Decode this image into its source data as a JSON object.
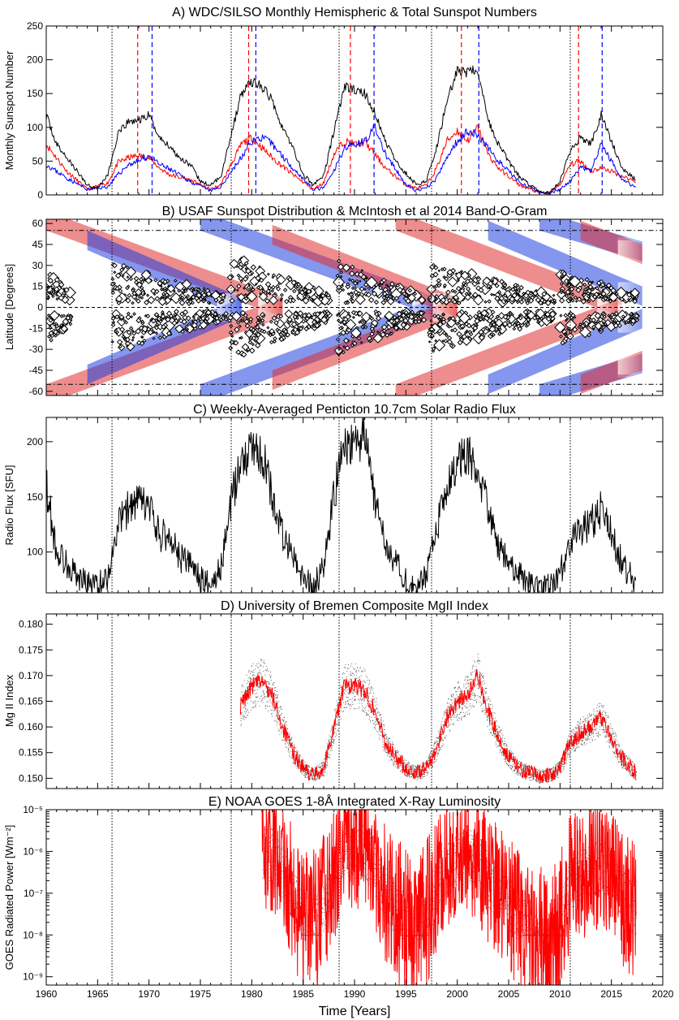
{
  "figure": {
    "xlabel": "Time [Years]",
    "x_ticks": [
      1960,
      1965,
      1970,
      1975,
      1980,
      1985,
      1990,
      1995,
      2000,
      2005,
      2010,
      2015,
      2020
    ],
    "xlim": [
      1960,
      2020
    ],
    "cycle_minima": [
      1966.4,
      1978.0,
      1988.5,
      1997.5,
      2011.0
    ]
  },
  "chart_data": [
    {
      "id": "A",
      "type": "line",
      "title": "A) WDC/SILSO Monthly Hemispheric & Total Sunspot Numbers",
      "ylabel": "Monthly Sunspot Number",
      "ylim": [
        0,
        250
      ],
      "y_ticks": [
        0,
        50,
        100,
        150,
        200,
        250
      ],
      "colors": {
        "total": "#000000",
        "north": "#ff0000",
        "south": "#0000ff"
      },
      "series": [
        {
          "name": "Total",
          "color": "#000000",
          "x": [
            1960,
            1961,
            1962,
            1963,
            1964,
            1965,
            1966,
            1967,
            1968,
            1969,
            1970,
            1971,
            1972,
            1973,
            1974,
            1975,
            1976,
            1977,
            1978,
            1979,
            1980,
            1981,
            1982,
            1983,
            1984,
            1985,
            1986,
            1987,
            1988,
            1989,
            1990,
            1991,
            1992,
            1993,
            1994,
            1995,
            1996,
            1997,
            1998,
            1999,
            2000,
            2001,
            2002,
            2003,
            2004,
            2005,
            2006,
            2007,
            2008,
            2009,
            2010,
            2011,
            2012,
            2013,
            2014,
            2015,
            2016,
            2017.4
          ],
          "y": [
            118,
            75,
            55,
            35,
            15,
            10,
            30,
            90,
            108,
            110,
            118,
            85,
            72,
            55,
            45,
            20,
            14,
            28,
            90,
            150,
            168,
            160,
            140,
            100,
            70,
            30,
            15,
            28,
            95,
            160,
            155,
            150,
            120,
            80,
            50,
            32,
            15,
            22,
            70,
            140,
            185,
            180,
            185,
            110,
            75,
            50,
            28,
            15,
            5,
            3,
            20,
            65,
            85,
            75,
            118,
            80,
            40,
            22
          ]
        },
        {
          "name": "North",
          "color": "#ff0000",
          "x": [
            1960,
            1962,
            1964,
            1966,
            1967,
            1968,
            1969,
            1970,
            1971,
            1972,
            1974,
            1976,
            1977,
            1978,
            1979,
            1980,
            1981,
            1982,
            1984,
            1986,
            1987,
            1988,
            1989,
            1990,
            1991,
            1992,
            1993,
            1995,
            1996,
            1997,
            1998,
            1999,
            2000,
            2001,
            2002,
            2003,
            2004,
            2006,
            2008,
            2009,
            2010,
            2011,
            2012,
            2013,
            2014,
            2015,
            2016,
            2017.4
          ],
          "y": [
            75,
            35,
            8,
            18,
            48,
            55,
            58,
            55,
            40,
            30,
            22,
            8,
            15,
            45,
            75,
            85,
            70,
            55,
            30,
            8,
            18,
            60,
            80,
            75,
            78,
            60,
            40,
            15,
            10,
            14,
            40,
            80,
            95,
            80,
            100,
            60,
            40,
            15,
            3,
            3,
            15,
            45,
            50,
            35,
            40,
            35,
            28,
            20
          ]
        },
        {
          "name": "South",
          "color": "#0000ff",
          "x": [
            1960,
            1962,
            1964,
            1966,
            1967,
            1968,
            1969,
            1970,
            1971,
            1972,
            1974,
            1976,
            1977,
            1978,
            1979,
            1980,
            1981,
            1982,
            1984,
            1986,
            1987,
            1988,
            1989,
            1990,
            1991,
            1992,
            1993,
            1995,
            1996,
            1997,
            1998,
            1999,
            2000,
            2001,
            2002,
            2003,
            2004,
            2006,
            2008,
            2009,
            2010,
            2011,
            2012,
            2013,
            2014,
            2015,
            2016,
            2017.4
          ],
          "y": [
            45,
            25,
            8,
            12,
            30,
            45,
            50,
            58,
            45,
            38,
            20,
            6,
            12,
            35,
            55,
            80,
            85,
            75,
            40,
            8,
            10,
            35,
            70,
            75,
            80,
            100,
            60,
            15,
            6,
            10,
            25,
            55,
            80,
            95,
            88,
            70,
            50,
            20,
            3,
            3,
            8,
            20,
            40,
            35,
            75,
            50,
            25,
            10
          ]
        }
      ],
      "markers": {
        "north_max": [
          1968.9,
          1979.7,
          1989.6,
          2000.4,
          2011.8
        ],
        "south_max": [
          1970.3,
          1980.4,
          1991.9,
          2002.1,
          2014.1
        ]
      }
    },
    {
      "id": "B",
      "type": "scatter",
      "title": "B) USAF Sunspot Distribution & McIntosh et al 2014 Band-O-Gram",
      "ylabel": "Latitude [Degrees]",
      "ylim": [
        -63,
        63
      ],
      "y_ticks": [
        60,
        45,
        30,
        15,
        0,
        -15,
        -30,
        -45,
        -60
      ],
      "reference_lines": [
        55,
        0,
        -55
      ],
      "spot_bands": [
        {
          "x": [
            1960,
            1962.5
          ],
          "lat": [
            5,
            28
          ]
        },
        {
          "x": [
            1966.4,
            1977.5
          ],
          "lat": [
            3,
            32
          ]
        },
        {
          "x": [
            1977.8,
            1987.5
          ],
          "lat": [
            4,
            38
          ]
        },
        {
          "x": [
            1988.3,
            1996.8
          ],
          "lat": [
            3,
            35
          ]
        },
        {
          "x": [
            1997.3,
            2009.5
          ],
          "lat": [
            3,
            32
          ]
        },
        {
          "x": [
            2010,
            2017.5
          ],
          "lat": [
            4,
            26
          ]
        }
      ],
      "bands": [
        {
          "color": "#e03030",
          "x0": 1960,
          "lat0": 62,
          "x1": 1983,
          "lat1": 0
        },
        {
          "color": "#2040e0",
          "x0": 1964,
          "lat0": 48,
          "x1": 1979,
          "lat1": 0
        },
        {
          "color": "#2040e0",
          "x0": 1975,
          "lat0": 62,
          "x1": 1998,
          "lat1": 0
        },
        {
          "color": "#e03030",
          "x0": 1982,
          "lat0": 52,
          "x1": 2000,
          "lat1": 0
        },
        {
          "color": "#e03030",
          "x0": 1994,
          "lat0": 62,
          "x1": 2016,
          "lat1": 0
        },
        {
          "color": "#2040e0",
          "x0": 2003,
          "lat0": 55,
          "x1": 2018,
          "lat1": 8
        },
        {
          "color": "#2040e0",
          "x0": 2008,
          "lat0": 62,
          "x1": 2018,
          "lat1": 40
        },
        {
          "color": "#e03030",
          "x0": 2012,
          "lat0": 55,
          "x1": 2018,
          "lat1": 38
        }
      ]
    },
    {
      "id": "C",
      "type": "line",
      "title": "C) Weekly-Averaged Penticton 10.7cm Solar Radio Flux",
      "ylabel": "Radio Flux [SFU]",
      "ylim": [
        63,
        222
      ],
      "y_ticks": [
        100,
        150,
        200
      ],
      "series": [
        {
          "name": "F10.7",
          "color": "#000000",
          "x": [
            1960,
            1961,
            1962,
            1963,
            1964,
            1965,
            1966,
            1967,
            1968,
            1969,
            1970,
            1971,
            1972,
            1973,
            1974,
            1975,
            1976,
            1977,
            1978,
            1979,
            1980,
            1981,
            1982,
            1983,
            1984,
            1985,
            1986,
            1987,
            1988,
            1989,
            1990,
            1991,
            1992,
            1993,
            1994,
            1995,
            1996,
            1997,
            1998,
            1999,
            2000,
            2001,
            2002,
            2003,
            2004,
            2005,
            2006,
            2007,
            2008,
            2009,
            2010,
            2011,
            2012,
            2013,
            2014,
            2015,
            2016,
            2017.4
          ],
          "y": [
            160,
            100,
            90,
            78,
            72,
            70,
            78,
            125,
            140,
            145,
            140,
            115,
            115,
            95,
            90,
            75,
            72,
            85,
            145,
            185,
            195,
            190,
            150,
            115,
            95,
            75,
            70,
            85,
            150,
            200,
            195,
            205,
            145,
            110,
            90,
            75,
            70,
            80,
            120,
            160,
            185,
            190,
            180,
            135,
            105,
            90,
            80,
            72,
            70,
            70,
            80,
            110,
            120,
            125,
            140,
            115,
            90,
            72
          ]
        }
      ]
    },
    {
      "id": "D",
      "type": "line",
      "title": "D) University of Bremen Composite MgII Index",
      "ylabel": "Mg II Index",
      "ylim": [
        0.148,
        0.182
      ],
      "y_ticks": [
        0.15,
        0.155,
        0.16,
        0.165,
        0.17,
        0.175,
        0.18
      ],
      "series": [
        {
          "name": "MgII",
          "color": "#ff0000",
          "x": [
            1978.9,
            1980,
            1981,
            1982,
            1983,
            1984,
            1985,
            1986,
            1987,
            1988,
            1989,
            1990,
            1991,
            1992,
            1993,
            1994,
            1995,
            1996,
            1997,
            1998,
            1999,
            2000,
            2001,
            2002,
            2003,
            2004,
            2005,
            2006,
            2007,
            2008,
            2009,
            2010,
            2011,
            2012,
            2013,
            2014,
            2015,
            2016,
            2017.4
          ],
          "y": [
            0.164,
            0.168,
            0.169,
            0.166,
            0.16,
            0.155,
            0.152,
            0.1505,
            0.152,
            0.16,
            0.168,
            0.168,
            0.167,
            0.163,
            0.157,
            0.154,
            0.152,
            0.151,
            0.152,
            0.156,
            0.162,
            0.165,
            0.166,
            0.17,
            0.163,
            0.158,
            0.154,
            0.152,
            0.151,
            0.1505,
            0.1505,
            0.152,
            0.157,
            0.159,
            0.16,
            0.162,
            0.158,
            0.154,
            0.151
          ]
        }
      ]
    },
    {
      "id": "E",
      "type": "line",
      "title": "E) NOAA GOES 1-8Å Integrated X-Ray Luminosity",
      "ylabel": "GOES Radiated Power [Wm⁻²]",
      "yscale": "log",
      "ylim_exp": [
        -9.2,
        -5
      ],
      "y_tick_labels": [
        "10⁻⁹",
        "10⁻⁸",
        "10⁻⁷",
        "10⁻⁶",
        "10⁻⁵"
      ],
      "y_tick_exps": [
        -9,
        -8,
        -7,
        -6,
        -5
      ],
      "series": [
        {
          "name": "X-ray",
          "color": "#ff0000",
          "x": [
            1981,
            1982,
            1983,
            1984,
            1985,
            1986,
            1987,
            1988,
            1989,
            1990,
            1991,
            1992,
            1993,
            1994,
            1995,
            1996,
            1997,
            1998,
            1999,
            2000,
            2001,
            2002,
            2003,
            2004,
            2005,
            2006,
            2007,
            2008,
            2009,
            2010,
            2011,
            2012,
            2013,
            2014,
            2015,
            2016,
            2017.4
          ],
          "y_exp": [
            -6.0,
            -6.1,
            -6.5,
            -7.0,
            -7.6,
            -7.8,
            -7.3,
            -6.6,
            -5.9,
            -6.0,
            -6.0,
            -6.4,
            -7.0,
            -7.4,
            -7.7,
            -8.2,
            -7.5,
            -6.8,
            -6.4,
            -6.2,
            -6.1,
            -6.2,
            -6.7,
            -7.0,
            -7.2,
            -7.6,
            -7.9,
            -8.3,
            -8.4,
            -7.8,
            -6.7,
            -6.6,
            -6.5,
            -6.3,
            -6.6,
            -7.1,
            -7.4
          ]
        }
      ]
    }
  ]
}
